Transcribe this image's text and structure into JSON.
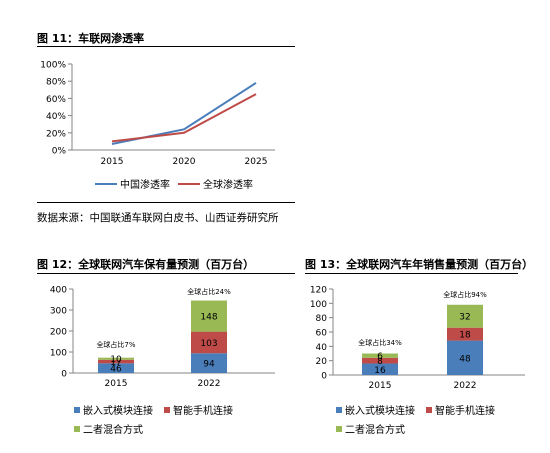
{
  "figures": [
    {
      "label": "图 11：",
      "title": "车联网渗透率"
    },
    {
      "label": "图 12：",
      "title": "全球联网汽车保有量预测（百万台）"
    },
    {
      "label": "图 13：",
      "title": "全球联网汽车年销售量预测（百万台）"
    }
  ],
  "source": "数据来源：中国联通车联网白皮书、山西证券研究所",
  "colors": {
    "blue": "#4a7ebb",
    "red": "#be4b48",
    "green": "#98b954"
  },
  "chart_data": [
    {
      "type": "line",
      "title": "车联网渗透率",
      "x": [
        "2015",
        "2020",
        "2025"
      ],
      "yticks": [
        "0%",
        "20%",
        "40%",
        "60%",
        "80%",
        "100%"
      ],
      "ylim": [
        0,
        100
      ],
      "series": [
        {
          "name": "中国渗透率",
          "values": [
            7,
            24,
            78
          ],
          "color": "#4a7ebb"
        },
        {
          "name": "全球渗透率",
          "values": [
            10,
            20,
            65
          ],
          "color": "#be4b48"
        }
      ],
      "legend": "bottom"
    },
    {
      "type": "bar",
      "stacked": true,
      "title": "全球联网汽车保有量预测（百万台）",
      "categories": [
        "2015",
        "2022"
      ],
      "yticks": [
        "0",
        "100",
        "200",
        "300",
        "400"
      ],
      "ylim": [
        0,
        400
      ],
      "series": [
        {
          "name": "嵌入式模块连接",
          "values": [
            46,
            94
          ],
          "color": "#4a7ebb"
        },
        {
          "name": "智能手机连接",
          "values": [
            17,
            103
          ],
          "color": "#be4b48"
        },
        {
          "name": "二者混合方式",
          "values": [
            10,
            148
          ],
          "color": "#98b954"
        }
      ],
      "labels": [
        [
          "46",
          "17",
          "10"
        ],
        [
          "94",
          "103",
          "148"
        ]
      ],
      "annotations": [
        "全球占比7%",
        "全球占比24%"
      ],
      "legend": "bottom"
    },
    {
      "type": "bar",
      "stacked": true,
      "title": "全球联网汽车年销售量预测（百万台）",
      "categories": [
        "2015",
        "2022"
      ],
      "yticks": [
        "0",
        "20",
        "40",
        "60",
        "80",
        "100",
        "120"
      ],
      "ylim": [
        0,
        120
      ],
      "series": [
        {
          "name": "嵌入式模块连接",
          "values": [
            16,
            48
          ],
          "color": "#4a7ebb"
        },
        {
          "name": "智能手机连接",
          "values": [
            8,
            18
          ],
          "color": "#be4b48"
        },
        {
          "name": "二者混合方式",
          "values": [
            6,
            32
          ],
          "color": "#98b954"
        }
      ],
      "labels": [
        [
          "16",
          "8",
          "6"
        ],
        [
          "48",
          "18",
          "32"
        ]
      ],
      "annotations": [
        "全球占比34%",
        "全球占比94%"
      ],
      "legend": "bottom"
    }
  ]
}
